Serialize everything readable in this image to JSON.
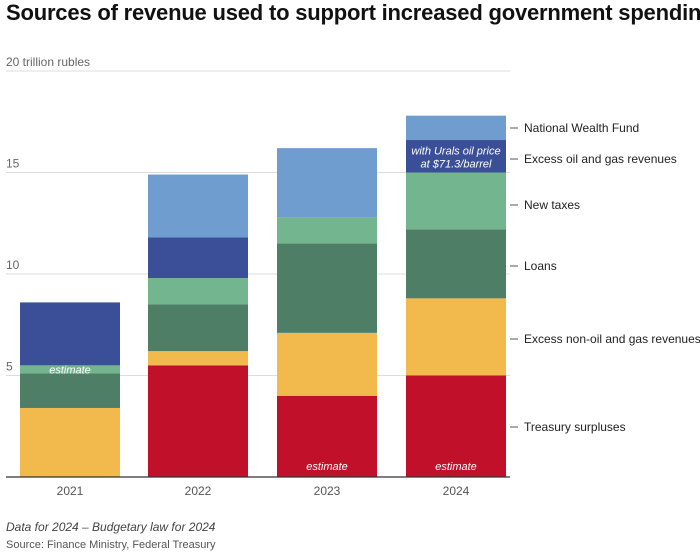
{
  "title": "Sources of revenue used to support increased government spending",
  "note": "Data for 2024 – Budgetary law for 2024",
  "source": "Source: Finance Ministry, Federal Treasury",
  "annotation_2024": [
    "with Urals oil price",
    "at $71.3/barrel"
  ],
  "chart_data": {
    "type": "bar",
    "stacked": true,
    "title": "Sources of revenue used to support increased government spending",
    "xlabel": "",
    "ylabel": "",
    "y_unit_label": "20 trillion rubles",
    "ylim": [
      0,
      20
    ],
    "yticks": [
      5,
      10,
      15,
      20
    ],
    "grid": true,
    "categories": [
      "2021",
      "2022",
      "2023",
      "2024"
    ],
    "series": [
      {
        "name": "Treasury surpluses",
        "color": "#c0102a",
        "values": [
          0,
          5.5,
          4.0,
          5.0
        ]
      },
      {
        "name": "Excess non-oil and gas revenues",
        "color": "#f2b94c",
        "values": [
          3.4,
          0.7,
          3.1,
          3.8
        ]
      },
      {
        "name": "Loans",
        "color": "#4e7f66",
        "values": [
          1.7,
          2.3,
          4.4,
          3.4
        ]
      },
      {
        "name": "New taxes",
        "color": "#72b58f",
        "values": [
          0.4,
          1.3,
          1.3,
          2.8
        ]
      },
      {
        "name": "Excess oil and gas revenues",
        "color": "#3a4f98",
        "values": [
          3.1,
          2.0,
          0,
          1.6
        ]
      },
      {
        "name": "National Wealth Fund",
        "color": "#6f9dcf",
        "values": [
          0,
          3.1,
          3.4,
          1.2
        ]
      }
    ],
    "legend_position": "right",
    "annotations": [
      {
        "category": "2021",
        "series": "New taxes",
        "text": "estimate"
      },
      {
        "category": "2023",
        "series": "Treasury surpluses",
        "text": "estimate"
      },
      {
        "category": "2024",
        "series": "Treasury surpluses",
        "text": "estimate"
      }
    ]
  }
}
